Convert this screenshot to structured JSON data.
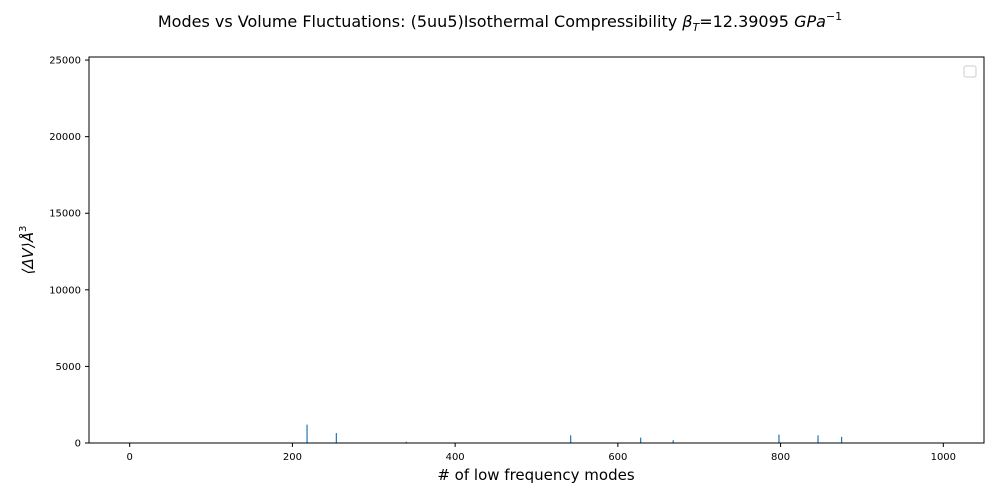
{
  "chart_data": {
    "type": "bar",
    "title_parts": {
      "prefix": "Modes vs Volume Fluctuations:  (5uu5)Isothermal Compressibility ",
      "beta": "β",
      "beta_sub": "T",
      "value": "=12.39095 ",
      "unit": "GPa",
      "unit_sup": "−1"
    },
    "xlabel": "# of low frequency modes",
    "ylabel": {
      "main": "⟨ΔV⟩Å",
      "sup": "3"
    },
    "xlim": [
      -50,
      1050
    ],
    "ylim": [
      0,
      25200
    ],
    "xticks": [
      0,
      200,
      400,
      600,
      800,
      1000
    ],
    "yticks": [
      0,
      5000,
      10000,
      15000,
      20000,
      25000
    ],
    "bar_color": "#1f77b4",
    "legend": {
      "placement": "top-right",
      "entries": []
    },
    "grid": false,
    "x": [
      218,
      254,
      340,
      542,
      628,
      668,
      798,
      846,
      875
    ],
    "values": [
      1200,
      650,
      80,
      500,
      350,
      180,
      550,
      500,
      400
    ]
  }
}
